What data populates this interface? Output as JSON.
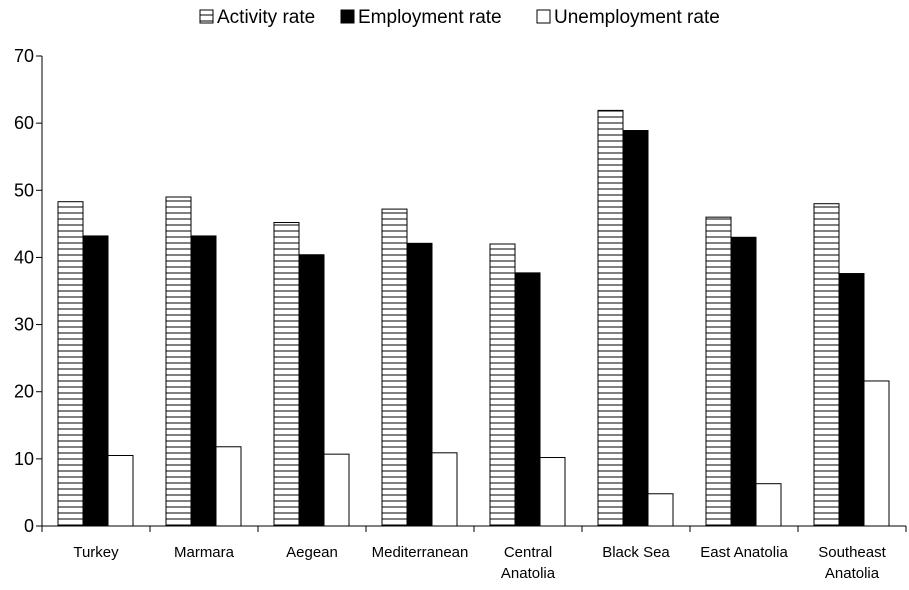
{
  "chart_data": {
    "type": "bar",
    "title": "",
    "xlabel": "",
    "ylabel": "",
    "ylim": [
      0,
      70
    ],
    "yticks": [
      0,
      10,
      20,
      30,
      40,
      50,
      60,
      70
    ],
    "grid": false,
    "legend_position": "top",
    "categories": [
      [
        "Turkey"
      ],
      [
        "Marmara"
      ],
      [
        "Aegean"
      ],
      [
        "Mediterranean"
      ],
      [
        "Central",
        "Anatolia"
      ],
      [
        "Black Sea"
      ],
      [
        "East Anatolia"
      ],
      [
        "Southeast",
        "Anatolia"
      ]
    ],
    "series": [
      {
        "name": "Activity rate",
        "style": "horizontal-hatch",
        "color": "#000000",
        "values": [
          48.3,
          49.0,
          45.2,
          47.2,
          42.0,
          61.9,
          46.0,
          48.0
        ]
      },
      {
        "name": "Employment rate",
        "style": "solid",
        "color": "#000000",
        "values": [
          43.2,
          43.2,
          40.4,
          42.1,
          37.7,
          58.9,
          43.0,
          37.6
        ]
      },
      {
        "name": "Unemployment rate",
        "style": "hollow",
        "color": "#ffffff",
        "values": [
          10.5,
          11.8,
          10.7,
          10.9,
          10.2,
          4.8,
          6.3,
          21.6
        ]
      }
    ]
  }
}
